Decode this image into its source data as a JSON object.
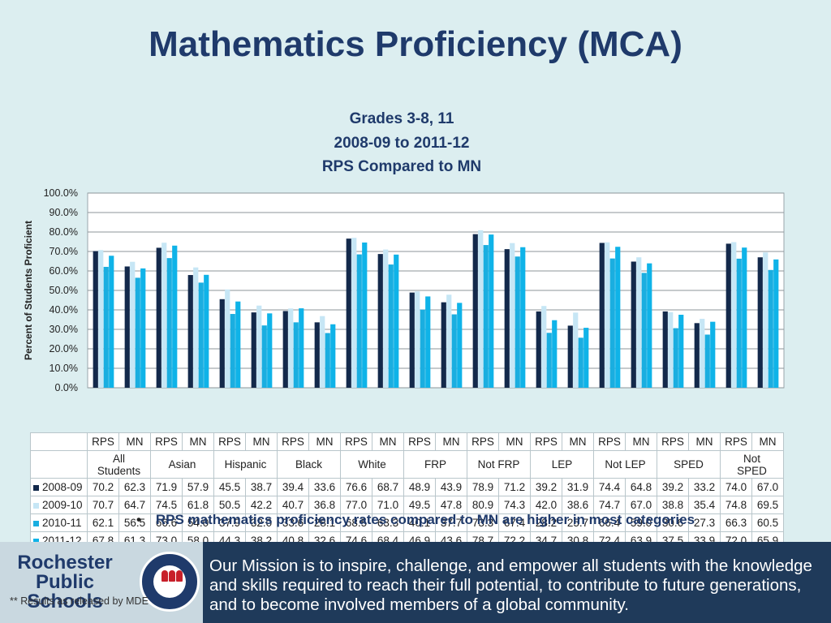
{
  "title": "Mathematics Proficiency (MCA)",
  "subtitles": [
    "Grades 3-8, 11",
    "2008-09 to 2011-12",
    "RPS Compared to MN"
  ],
  "bullet": "RPS mathematics proficiency rates compared to MN are higher in most categories",
  "footer": {
    "logo_lines": [
      "Rochester",
      "Public",
      "Schools"
    ],
    "footnote": "** Results as released by MDE",
    "mission": "Our Mission is to inspire, challenge, and empower all students with the knowledge and skills required to reach their full potential, to contribute to future generations, and to become involved members of a global community."
  },
  "colors": {
    "title": "#1f3a6b",
    "footer_bg": "#1f3a5a"
  },
  "chart_data": {
    "type": "bar",
    "ylabel": "Percent of Students Proficient",
    "ylim": [
      0,
      100
    ],
    "ytick_labels": [
      "0.0%",
      "10.0%",
      "20.0%",
      "30.0%",
      "40.0%",
      "50.0%",
      "60.0%",
      "70.0%",
      "80.0%",
      "90.0%",
      "100.0%"
    ],
    "grid": true,
    "categories": [
      "RPS",
      "MN",
      "RPS",
      "MN",
      "RPS",
      "MN",
      "RPS",
      "MN",
      "RPS",
      "MN",
      "RPS",
      "MN",
      "RPS",
      "MN",
      "RPS",
      "MN",
      "RPS",
      "MN",
      "RPS",
      "MN",
      "RPS",
      "MN"
    ],
    "groups": [
      "All Students",
      "Asian",
      "Hispanic",
      "Black",
      "White",
      "FRP",
      "Not FRP",
      "LEP",
      "Not LEP",
      "SPED",
      "Not SPED"
    ],
    "series": [
      {
        "name": "2008-09",
        "color": "#13294b",
        "values": [
          70.2,
          62.3,
          71.9,
          57.9,
          45.5,
          38.7,
          39.4,
          33.6,
          76.6,
          68.7,
          48.9,
          43.9,
          78.9,
          71.2,
          39.2,
          31.9,
          74.4,
          64.8,
          39.2,
          33.2,
          74.0,
          67.0
        ]
      },
      {
        "name": "2009-10",
        "color": "#c6e6f5",
        "values": [
          70.7,
          64.7,
          74.5,
          61.8,
          50.5,
          42.2,
          40.7,
          36.8,
          77.0,
          71.0,
          49.5,
          47.8,
          80.9,
          74.3,
          42.0,
          38.6,
          74.7,
          67.0,
          38.8,
          35.4,
          74.8,
          69.5
        ]
      },
      {
        "name": "2010-11",
        "color": "#1aaee0",
        "values": [
          62.1,
          56.5,
          66.6,
          54.0,
          37.9,
          32.0,
          33.6,
          28.1,
          68.5,
          63.3,
          40.1,
          37.7,
          73.3,
          67.4,
          28.2,
          25.7,
          66.4,
          59.0,
          30.6,
          27.3,
          66.3,
          60.5
        ]
      },
      {
        "name": "2011-12",
        "color": "#0fb3e8",
        "values": [
          67.8,
          61.3,
          73.0,
          58.0,
          44.3,
          38.2,
          40.8,
          32.6,
          74.6,
          68.4,
          46.9,
          43.6,
          78.7,
          72.2,
          34.7,
          30.8,
          72.4,
          63.9,
          37.5,
          33.9,
          72.0,
          65.9
        ]
      }
    ]
  }
}
